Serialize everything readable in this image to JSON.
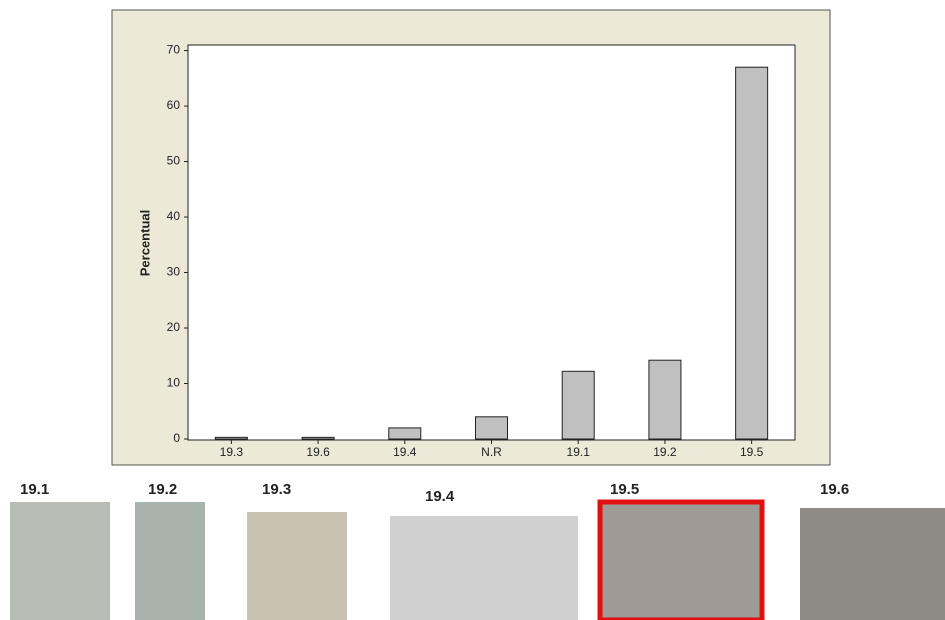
{
  "chart_data": {
    "type": "bar",
    "ylabel": "Percentual",
    "categories": [
      "19.3",
      "19.6",
      "19.4",
      "N.R",
      "19.1",
      "19.2",
      "19.5"
    ],
    "values": [
      0.3,
      0.3,
      2,
      4,
      12.2,
      14.2,
      67
    ],
    "color": "#c0c0c0",
    "ylim": [
      0,
      71
    ],
    "yticks": [
      0,
      10,
      20,
      30,
      40,
      50,
      60,
      70
    ],
    "grid": false
  },
  "photos": {
    "labels": [
      "19.1",
      "19.2",
      "19.3",
      "19.4",
      "19.5",
      "19.6"
    ]
  }
}
